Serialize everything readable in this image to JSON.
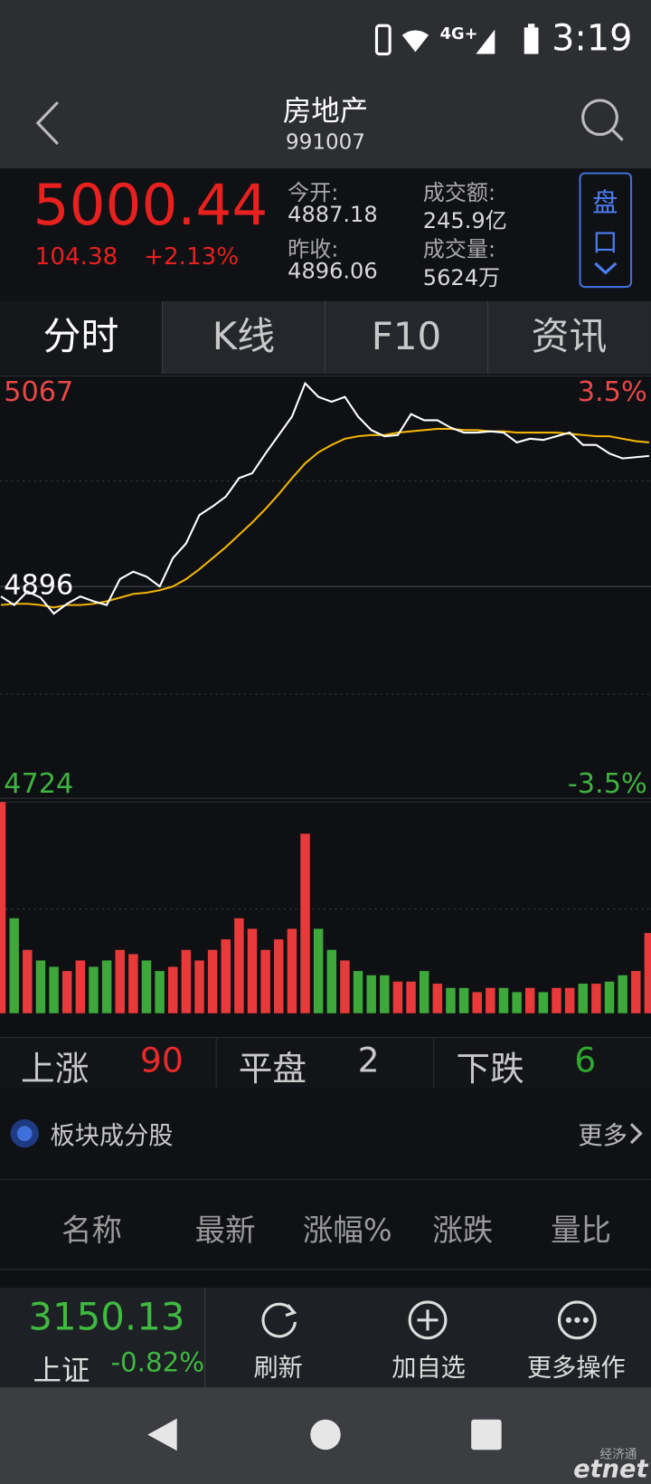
{
  "status_bar": {
    "network": "4G+",
    "time": "3:19"
  },
  "header": {
    "title": "房地产",
    "code": "991007"
  },
  "quote": {
    "price": "5000.44",
    "change": "104.38",
    "change_pct": "+2.13%",
    "stats": [
      {
        "label": "今开:",
        "value": "4887.18"
      },
      {
        "label": "昨收:",
        "value": "4896.06"
      },
      {
        "label": "成交额:",
        "value": "245.9亿"
      },
      {
        "label": "成交量:",
        "value": "5624万"
      }
    ],
    "panel_button": [
      "盘",
      "口"
    ]
  },
  "tabs": [
    "分时",
    "K线",
    "F10",
    "资讯"
  ],
  "chart_data": {
    "type": "line",
    "ylim": [
      4724,
      5067
    ],
    "yticks": [
      4724,
      4896,
      5067
    ],
    "y2lim": [
      -3.5,
      3.5
    ],
    "y2ticks": [
      {
        "value": -3.5,
        "label": "-3.5%"
      },
      {
        "value": 3.5,
        "label": "3.5%"
      }
    ],
    "series": [
      {
        "color": "#ffffff",
        "values": [
          4888,
          4881,
          4892,
          4887,
          4874,
          4882,
          4888,
          4884,
          4881,
          4902,
          4908,
          4904,
          4896,
          4919,
          4931,
          4954,
          4961,
          4969,
          4984,
          4988,
          5004,
          5019,
          5034,
          5061,
          5050,
          5046,
          5050,
          5034,
          5023,
          5018,
          5019,
          5036,
          5031,
          5031,
          5025,
          5021,
          5021,
          5022,
          5021,
          5013,
          5016,
          5015,
          5018,
          5021,
          5011,
          5011,
          5004,
          5000,
          5001,
          5002
        ]
      },
      {
        "color": "#f0b400",
        "values": [
          4881,
          4882,
          4882,
          4881,
          4879,
          4881,
          4881,
          4882,
          4884,
          4887,
          4890,
          4891,
          4893,
          4896,
          4902,
          4910,
          4919,
          4928,
          4938,
          4948,
          4959,
          4971,
          4984,
          4996,
          5005,
          5011,
          5016,
          5018,
          5019,
          5019,
          5021,
          5022,
          5023,
          5024,
          5024,
          5023,
          5023,
          5022,
          5022,
          5021,
          5021,
          5021,
          5021,
          5020,
          5019,
          5018,
          5018,
          5016,
          5014,
          5013
        ]
      }
    ],
    "volume": {
      "ylim": [
        0,
        100
      ],
      "up_color": "#e83a3a",
      "down_color": "#3ea83a",
      "values": [
        100,
        45,
        30,
        25,
        22,
        20,
        25,
        22,
        25,
        30,
        28,
        25,
        20,
        22,
        30,
        25,
        30,
        35,
        45,
        40,
        30,
        35,
        40,
        85,
        40,
        30,
        25,
        20,
        18,
        18,
        15,
        15,
        20,
        14,
        12,
        12,
        10,
        12,
        12,
        10,
        12,
        10,
        12,
        12,
        14,
        14,
        15,
        18,
        20,
        38
      ]
    }
  },
  "counts": [
    {
      "label": "上涨",
      "value": 90
    },
    {
      "label": "平盘",
      "value": 2
    },
    {
      "label": "下跌",
      "value": 6
    }
  ],
  "section": {
    "title": "板块成分股",
    "more": "更多"
  },
  "table": {
    "headers": [
      "名称",
      "最新",
      "涨幅%",
      "涨跌",
      "量比"
    ]
  },
  "index": {
    "value": "3150.13",
    "name": "上证",
    "change_pct": "-0.82%"
  },
  "actions": [
    "刷新",
    "加自选",
    "更多操作"
  ],
  "watermark": {
    "cn": "经济通",
    "en": "etnet"
  }
}
